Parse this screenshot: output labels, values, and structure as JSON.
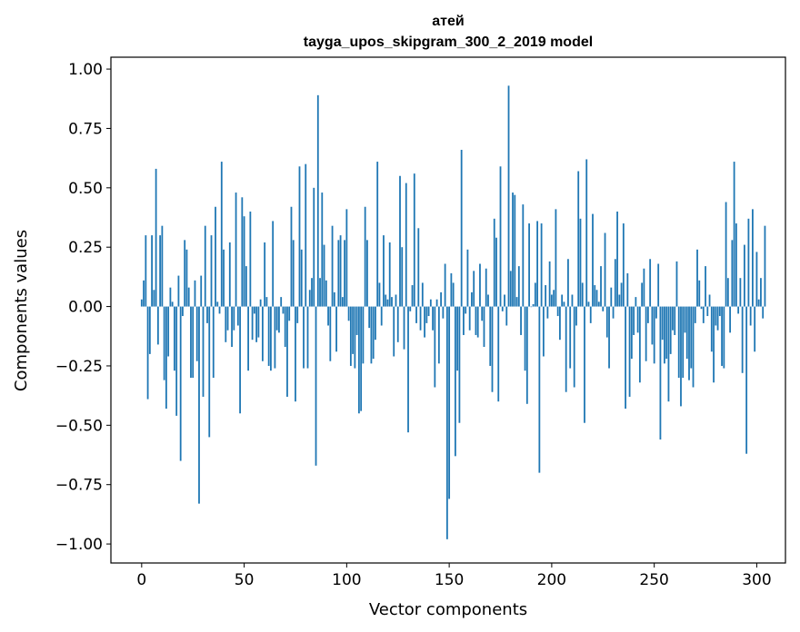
{
  "chart_data": {
    "type": "bar",
    "title": "атей",
    "subtitle": "tayga_upos_skipgram_300_2_2019 model",
    "xlabel": "Vector components",
    "ylabel": "Components values",
    "xlim": [
      -15,
      314
    ],
    "ylim": [
      -1.08,
      1.05
    ],
    "xticks": [
      0,
      50,
      100,
      150,
      200,
      250,
      300
    ],
    "yticks": [
      -1.0,
      -0.75,
      -0.5,
      -0.25,
      0.0,
      0.25,
      0.5,
      0.75,
      1.0
    ],
    "xtick_labels": [
      "0",
      "50",
      "100",
      "150",
      "200",
      "250",
      "300"
    ],
    "ytick_labels": [
      "−1.00",
      "−0.75",
      "−0.50",
      "−0.25",
      "0.00",
      "0.25",
      "0.50",
      "0.75",
      "1.00"
    ],
    "bar_color": "#1f77b4",
    "grid": false,
    "values": [
      0.03,
      0.11,
      0.3,
      -0.39,
      -0.2,
      0.3,
      0.07,
      0.58,
      -0.16,
      0.3,
      0.34,
      -0.31,
      -0.43,
      -0.21,
      0.08,
      0.02,
      -0.27,
      -0.46,
      0.13,
      -0.65,
      -0.04,
      0.28,
      0.24,
      0.08,
      -0.3,
      -0.3,
      0.11,
      -0.23,
      -0.83,
      0.13,
      -0.38,
      0.34,
      -0.07,
      -0.55,
      0.3,
      -0.3,
      0.42,
      0.02,
      -0.03,
      0.61,
      0.24,
      -0.15,
      -0.1,
      0.27,
      -0.17,
      -0.1,
      0.48,
      -0.08,
      -0.45,
      0.46,
      0.38,
      0.17,
      -0.27,
      0.4,
      -0.14,
      -0.03,
      -0.15,
      -0.13,
      0.03,
      -0.23,
      0.27,
      0.04,
      -0.25,
      -0.27,
      0.36,
      -0.26,
      -0.1,
      -0.11,
      0.04,
      -0.03,
      -0.17,
      -0.38,
      -0.06,
      0.42,
      0.28,
      -0.4,
      -0.07,
      0.59,
      0.24,
      -0.26,
      0.6,
      -0.26,
      0.07,
      0.12,
      0.5,
      -0.67,
      0.89,
      0.12,
      0.48,
      0.26,
      0.11,
      -0.08,
      -0.23,
      0.34,
      0.06,
      -0.19,
      0.28,
      0.3,
      0.04,
      0.28,
      0.41,
      -0.06,
      -0.25,
      -0.2,
      -0.26,
      -0.12,
      -0.45,
      -0.44,
      -0.24,
      0.42,
      0.28,
      -0.09,
      -0.24,
      -0.22,
      -0.14,
      0.61,
      0.1,
      -0.08,
      0.3,
      0.05,
      0.03,
      0.27,
      0.04,
      -0.21,
      0.05,
      -0.15,
      0.55,
      0.25,
      -0.18,
      0.52,
      -0.53,
      -0.02,
      0.09,
      0.56,
      -0.07,
      0.33,
      -0.1,
      0.1,
      -0.13,
      -0.07,
      -0.04,
      0.03,
      -0.1,
      -0.34,
      0.03,
      -0.24,
      0.06,
      -0.05,
      0.18,
      -0.98,
      -0.81,
      0.14,
      0.1,
      -0.63,
      -0.27,
      -0.49,
      0.66,
      -0.12,
      -0.03,
      0.24,
      -0.1,
      0.06,
      0.15,
      -0.12,
      -0.13,
      0.18,
      -0.06,
      -0.17,
      0.16,
      0.05,
      -0.25,
      -0.36,
      0.37,
      0.29,
      -0.4,
      0.59,
      -0.02,
      0.05,
      -0.08,
      0.93,
      0.15,
      0.48,
      0.47,
      0.04,
      0.17,
      -0.12,
      0.43,
      -0.27,
      -0.41,
      0.35,
      0.0,
      0.01,
      0.1,
      0.36,
      -0.7,
      0.35,
      -0.21,
      0.09,
      -0.05,
      0.19,
      0.05,
      0.07,
      0.41,
      -0.04,
      -0.14,
      0.05,
      0.02,
      -0.36,
      0.2,
      -0.26,
      0.05,
      -0.34,
      -0.08,
      0.57,
      0.37,
      0.1,
      -0.49,
      0.62,
      0.02,
      -0.07,
      0.39,
      0.09,
      0.07,
      0.02,
      0.17,
      -0.02,
      0.31,
      -0.13,
      -0.26,
      0.08,
      -0.05,
      0.2,
      0.4,
      0.05,
      0.1,
      0.35,
      -0.43,
      0.14,
      -0.38,
      -0.22,
      -0.12,
      0.04,
      -0.11,
      -0.32,
      0.1,
      0.16,
      -0.23,
      -0.07,
      0.2,
      -0.16,
      -0.24,
      -0.05,
      0.18,
      -0.56,
      -0.14,
      -0.24,
      -0.22,
      -0.4,
      -0.2,
      -0.1,
      -0.12,
      0.19,
      -0.3,
      -0.42,
      -0.3,
      -0.11,
      -0.22,
      -0.31,
      -0.26,
      -0.34,
      -0.07,
      0.24,
      0.11,
      -0.01,
      -0.07,
      0.17,
      -0.04,
      0.05,
      -0.19,
      -0.32,
      -0.08,
      -0.1,
      -0.04,
      -0.25,
      -0.26,
      0.44,
      0.12,
      -0.11,
      0.28,
      0.61,
      0.35,
      -0.03,
      0.12,
      -0.28,
      0.26,
      -0.62,
      0.37,
      -0.08,
      0.41,
      -0.19,
      0.23,
      0.03,
      0.12,
      -0.05,
      0.34
    ]
  }
}
